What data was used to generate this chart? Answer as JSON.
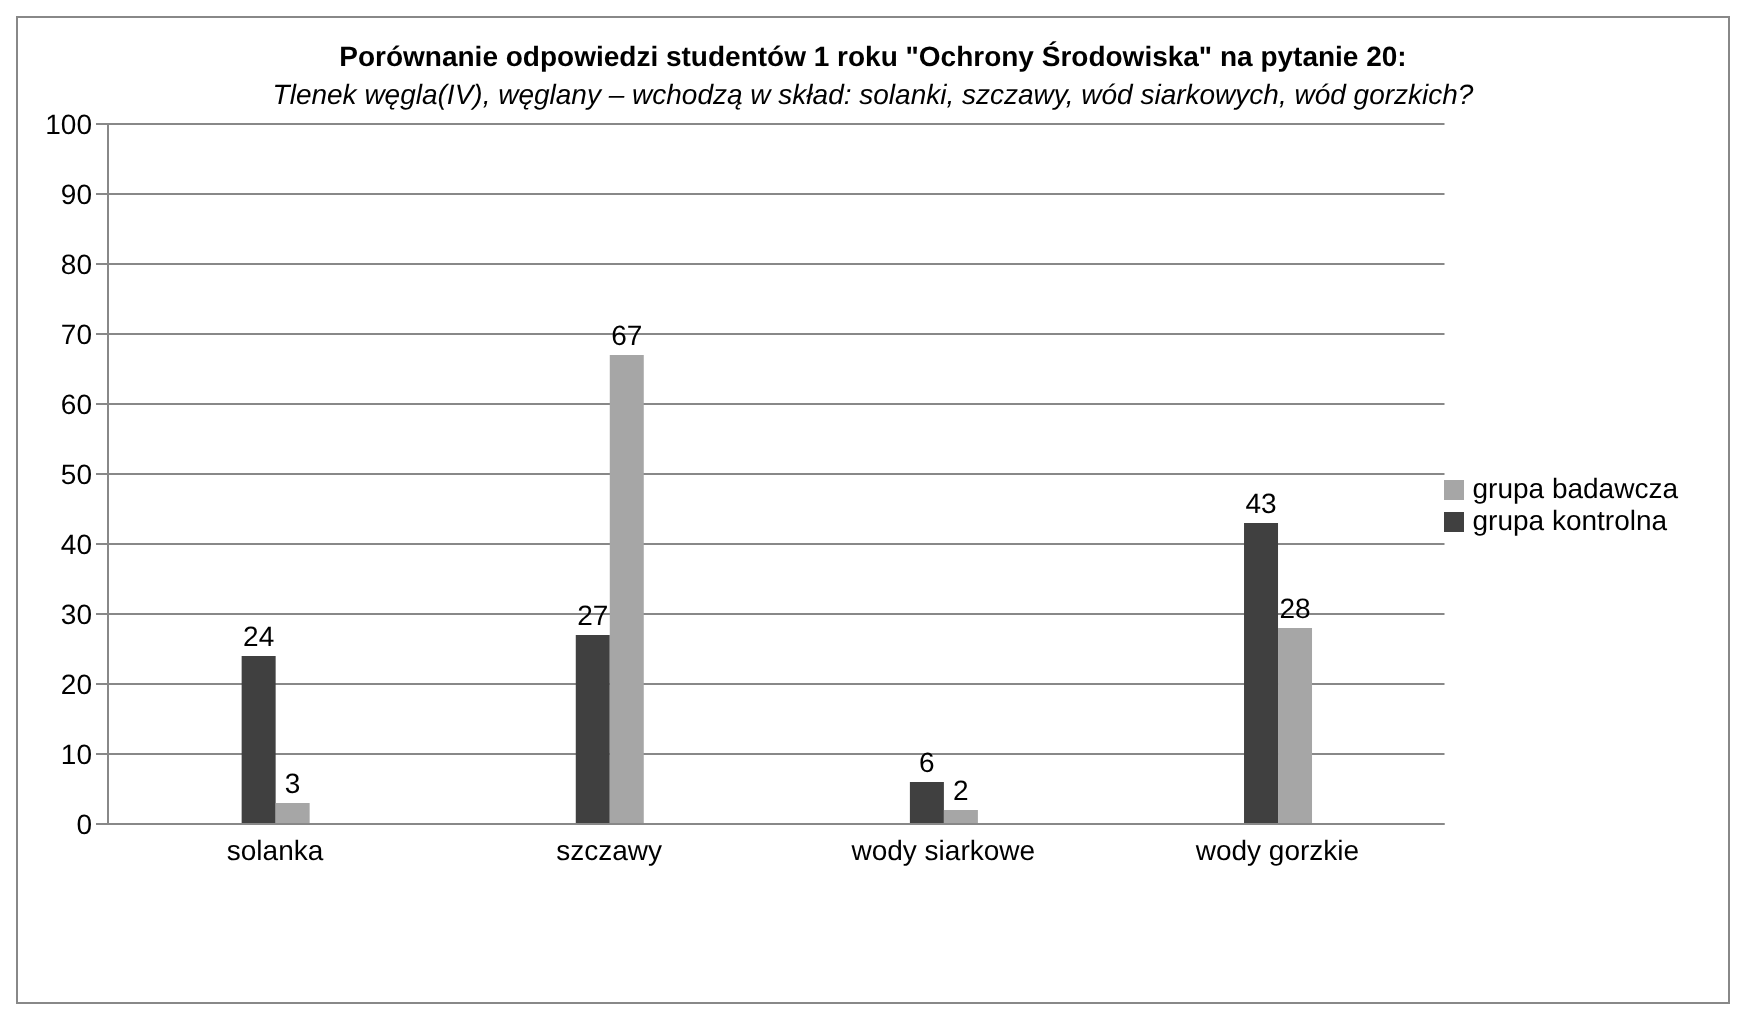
{
  "chart_data": {
    "type": "bar",
    "title": "Porównanie odpowiedzi studentów 1 roku \"Ochrony Środowiska\" na pytanie  20:",
    "subtitle": "Tlenek węgla(IV), węglany – wchodzą w skład: solanki, szczawy, wód siarkowych, wód gorzkich?",
    "categories": [
      "solanka",
      "szczawy",
      "wody siarkowe",
      "wody gorzkie"
    ],
    "series": [
      {
        "name": "grupa kontrolna",
        "color": "#404040",
        "values": [
          24,
          27,
          6,
          43
        ]
      },
      {
        "name": "grupa badawcza",
        "color": "#a6a6a6",
        "values": [
          3,
          67,
          2,
          28
        ]
      }
    ],
    "ylim": [
      0,
      100
    ],
    "yticks": [
      0,
      10,
      20,
      30,
      40,
      50,
      60,
      70,
      80,
      90,
      100
    ],
    "grid": "y",
    "legend": "right",
    "data_labels": true
  }
}
